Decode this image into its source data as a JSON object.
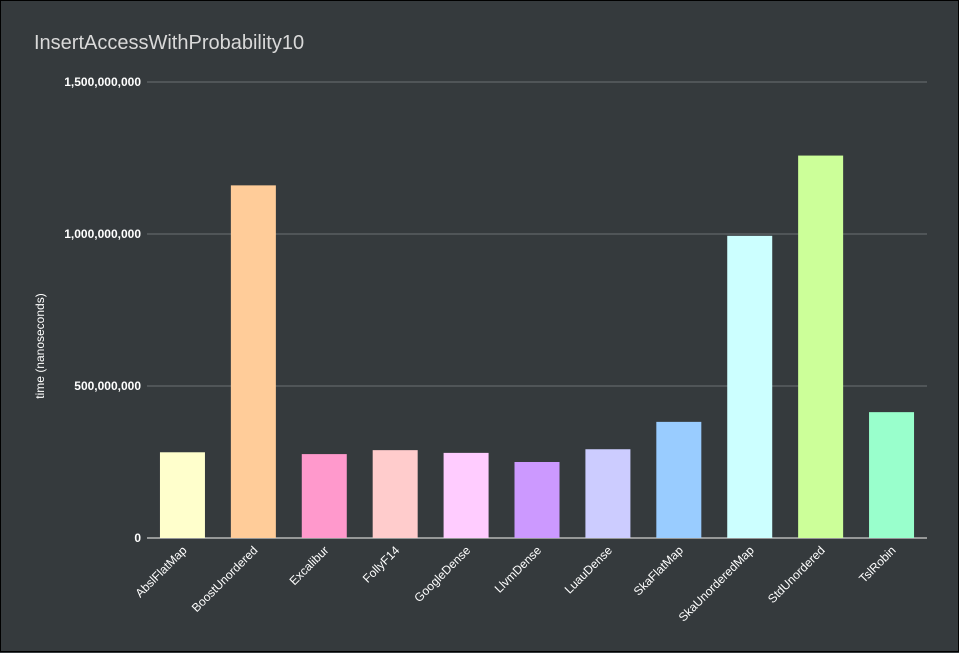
{
  "chart_data": {
    "type": "bar",
    "title": "InsertAccessWithProbability10",
    "xlabel": "",
    "ylabel": "time (nanoseconds)",
    "ylim": [
      0,
      1500000000
    ],
    "yticks": [
      0,
      500000000,
      1000000000,
      1500000000
    ],
    "ytick_labels": [
      "0",
      "500,000,000",
      "1,000,000,000",
      "1,500,000,000"
    ],
    "grid": true,
    "categories": [
      "AbslFlatMap",
      "BoostUnordered",
      "Excalibur",
      "FollyF14",
      "GoogleDense",
      "LlvmDense",
      "LuauDense",
      "SkaFlatMap",
      "SkaUnorderedMap",
      "StdUnordered",
      "TslRobin"
    ],
    "values": [
      282000000,
      1160000000,
      276000000,
      289000000,
      280000000,
      250000000,
      292000000,
      382000000,
      994000000,
      1258000000,
      414000000
    ],
    "colors": [
      "#ffffcc",
      "#ffcc99",
      "#ff99cc",
      "#ffcccc",
      "#ffccff",
      "#cc99ff",
      "#ccccff",
      "#99ccff",
      "#ccffff",
      "#ccff99",
      "#99ffcc"
    ]
  }
}
